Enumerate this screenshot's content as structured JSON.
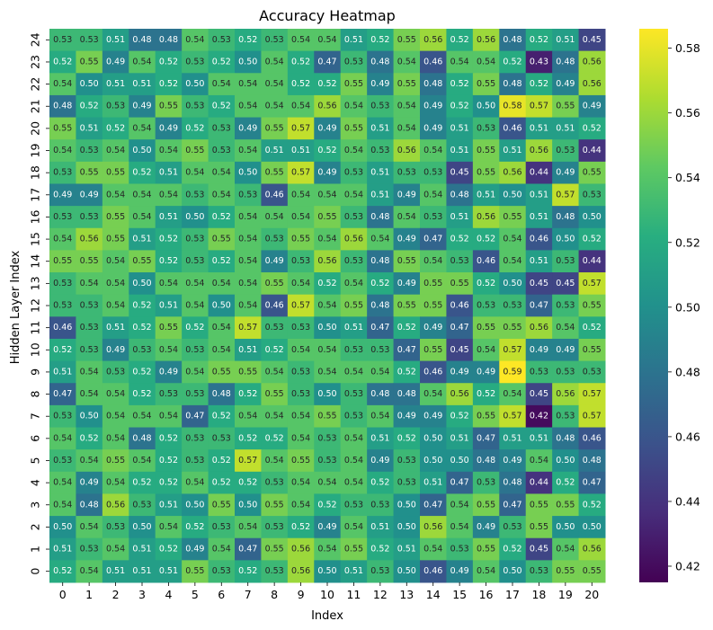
{
  "chart_data": {
    "type": "heatmap",
    "title": "Accuracy Heatmap",
    "xlabel": "Index",
    "ylabel": "Hidden Layer Index",
    "x": [
      0,
      1,
      2,
      3,
      4,
      5,
      6,
      7,
      8,
      9,
      10,
      11,
      12,
      13,
      14,
      15,
      16,
      17,
      18,
      19,
      20
    ],
    "y": [
      24,
      23,
      22,
      21,
      20,
      19,
      18,
      17,
      16,
      15,
      14,
      13,
      12,
      11,
      10,
      9,
      8,
      7,
      6,
      5,
      4,
      3,
      2,
      1,
      0
    ],
    "colormap": "viridis",
    "vmin": 0.415,
    "vmax": 0.586,
    "colorbar_ticks": [
      0.42,
      0.44,
      0.46,
      0.48,
      0.5,
      0.52,
      0.54,
      0.56,
      0.58
    ],
    "values": [
      [
        0.53,
        0.53,
        0.51,
        0.48,
        0.48,
        0.54,
        0.53,
        0.52,
        0.53,
        0.54,
        0.54,
        0.51,
        0.52,
        0.55,
        0.56,
        0.52,
        0.56,
        0.48,
        0.52,
        0.51,
        0.45
      ],
      [
        0.52,
        0.55,
        0.49,
        0.54,
        0.52,
        0.53,
        0.52,
        0.5,
        0.54,
        0.52,
        0.47,
        0.53,
        0.48,
        0.54,
        0.46,
        0.54,
        0.54,
        0.52,
        0.43,
        0.48,
        0.56
      ],
      [
        0.54,
        0.5,
        0.51,
        0.51,
        0.52,
        0.5,
        0.54,
        0.54,
        0.54,
        0.52,
        0.52,
        0.55,
        0.49,
        0.55,
        0.48,
        0.52,
        0.55,
        0.48,
        0.52,
        0.49,
        0.56
      ],
      [
        0.48,
        0.52,
        0.53,
        0.49,
        0.55,
        0.53,
        0.52,
        0.54,
        0.54,
        0.54,
        0.56,
        0.54,
        0.53,
        0.54,
        0.49,
        0.52,
        0.5,
        0.58,
        0.57,
        0.55,
        0.49
      ],
      [
        0.55,
        0.51,
        0.52,
        0.54,
        0.49,
        0.52,
        0.53,
        0.49,
        0.55,
        0.57,
        0.49,
        0.55,
        0.51,
        0.54,
        0.49,
        0.51,
        0.53,
        0.46,
        0.51,
        0.51,
        0.52
      ],
      [
        0.54,
        0.53,
        0.54,
        0.5,
        0.54,
        0.55,
        0.53,
        0.54,
        0.51,
        0.51,
        0.52,
        0.54,
        0.53,
        0.56,
        0.54,
        0.51,
        0.55,
        0.51,
        0.56,
        0.53,
        0.44
      ],
      [
        0.53,
        0.55,
        0.55,
        0.52,
        0.51,
        0.54,
        0.54,
        0.5,
        0.55,
        0.57,
        0.49,
        0.53,
        0.51,
        0.53,
        0.53,
        0.45,
        0.55,
        0.56,
        0.44,
        0.49,
        0.55
      ],
      [
        0.49,
        0.49,
        0.54,
        0.54,
        0.54,
        0.53,
        0.54,
        0.53,
        0.46,
        0.54,
        0.54,
        0.54,
        0.51,
        0.49,
        0.54,
        0.48,
        0.51,
        0.5,
        0.51,
        0.57,
        0.53
      ],
      [
        0.53,
        0.53,
        0.55,
        0.54,
        0.51,
        0.5,
        0.52,
        0.54,
        0.54,
        0.54,
        0.55,
        0.53,
        0.48,
        0.54,
        0.53,
        0.51,
        0.56,
        0.55,
        0.51,
        0.48,
        0.5
      ],
      [
        0.54,
        0.56,
        0.55,
        0.51,
        0.52,
        0.53,
        0.55,
        0.54,
        0.53,
        0.55,
        0.54,
        0.56,
        0.54,
        0.49,
        0.47,
        0.52,
        0.52,
        0.54,
        0.46,
        0.5,
        0.52
      ],
      [
        0.55,
        0.55,
        0.54,
        0.55,
        0.52,
        0.53,
        0.52,
        0.54,
        0.49,
        0.53,
        0.56,
        0.53,
        0.48,
        0.55,
        0.54,
        0.53,
        0.46,
        0.54,
        0.51,
        0.53,
        0.44
      ],
      [
        0.53,
        0.54,
        0.54,
        0.5,
        0.54,
        0.54,
        0.54,
        0.54,
        0.55,
        0.54,
        0.52,
        0.54,
        0.52,
        0.49,
        0.55,
        0.55,
        0.52,
        0.5,
        0.45,
        0.45,
        0.57
      ],
      [
        0.53,
        0.53,
        0.54,
        0.52,
        0.51,
        0.54,
        0.5,
        0.54,
        0.46,
        0.57,
        0.54,
        0.55,
        0.48,
        0.55,
        0.55,
        0.46,
        0.53,
        0.53,
        0.47,
        0.53,
        0.55
      ],
      [
        0.46,
        0.53,
        0.51,
        0.52,
        0.55,
        0.52,
        0.54,
        0.57,
        0.53,
        0.53,
        0.5,
        0.51,
        0.47,
        0.52,
        0.49,
        0.47,
        0.55,
        0.55,
        0.56,
        0.54,
        0.52
      ],
      [
        0.52,
        0.53,
        0.49,
        0.53,
        0.54,
        0.53,
        0.54,
        0.51,
        0.52,
        0.54,
        0.54,
        0.53,
        0.53,
        0.47,
        0.55,
        0.45,
        0.54,
        0.57,
        0.49,
        0.49,
        0.55
      ],
      [
        0.51,
        0.54,
        0.53,
        0.52,
        0.49,
        0.54,
        0.55,
        0.55,
        0.54,
        0.53,
        0.54,
        0.54,
        0.54,
        0.52,
        0.46,
        0.49,
        0.49,
        0.59,
        0.53,
        0.53,
        0.53
      ],
      [
        0.47,
        0.54,
        0.54,
        0.52,
        0.53,
        0.53,
        0.48,
        0.52,
        0.55,
        0.53,
        0.5,
        0.53,
        0.48,
        0.48,
        0.54,
        0.56,
        0.52,
        0.54,
        0.45,
        0.56,
        0.57
      ],
      [
        0.53,
        0.5,
        0.54,
        0.54,
        0.54,
        0.47,
        0.52,
        0.54,
        0.54,
        0.54,
        0.55,
        0.53,
        0.54,
        0.49,
        0.49,
        0.52,
        0.55,
        0.57,
        0.42,
        0.53,
        0.57
      ],
      [
        0.54,
        0.52,
        0.54,
        0.48,
        0.52,
        0.53,
        0.53,
        0.52,
        0.52,
        0.54,
        0.53,
        0.54,
        0.51,
        0.52,
        0.5,
        0.51,
        0.47,
        0.51,
        0.51,
        0.48,
        0.46
      ],
      [
        0.53,
        0.54,
        0.55,
        0.54,
        0.52,
        0.53,
        0.52,
        0.57,
        0.54,
        0.55,
        0.53,
        0.54,
        0.49,
        0.53,
        0.5,
        0.5,
        0.48,
        0.49,
        0.54,
        0.5,
        0.48
      ],
      [
        0.54,
        0.49,
        0.54,
        0.52,
        0.52,
        0.54,
        0.52,
        0.52,
        0.53,
        0.54,
        0.54,
        0.54,
        0.52,
        0.53,
        0.51,
        0.47,
        0.53,
        0.48,
        0.44,
        0.52,
        0.47
      ],
      [
        0.54,
        0.48,
        0.56,
        0.53,
        0.51,
        0.5,
        0.55,
        0.5,
        0.55,
        0.54,
        0.52,
        0.53,
        0.53,
        0.5,
        0.47,
        0.54,
        0.55,
        0.47,
        0.55,
        0.55,
        0.52
      ],
      [
        0.5,
        0.54,
        0.53,
        0.5,
        0.54,
        0.52,
        0.53,
        0.54,
        0.53,
        0.52,
        0.49,
        0.54,
        0.51,
        0.5,
        0.56,
        0.54,
        0.49,
        0.53,
        0.55,
        0.5,
        0.5
      ],
      [
        0.51,
        0.53,
        0.54,
        0.51,
        0.52,
        0.49,
        0.54,
        0.47,
        0.55,
        0.56,
        0.54,
        0.55,
        0.52,
        0.51,
        0.54,
        0.53,
        0.55,
        0.52,
        0.45,
        0.54,
        0.56
      ],
      [
        0.52,
        0.54,
        0.51,
        0.51,
        0.51,
        0.55,
        0.53,
        0.52,
        0.53,
        0.56,
        0.5,
        0.51,
        0.53,
        0.5,
        0.46,
        0.49,
        0.54,
        0.5,
        0.53,
        0.55,
        0.55
      ]
    ]
  }
}
